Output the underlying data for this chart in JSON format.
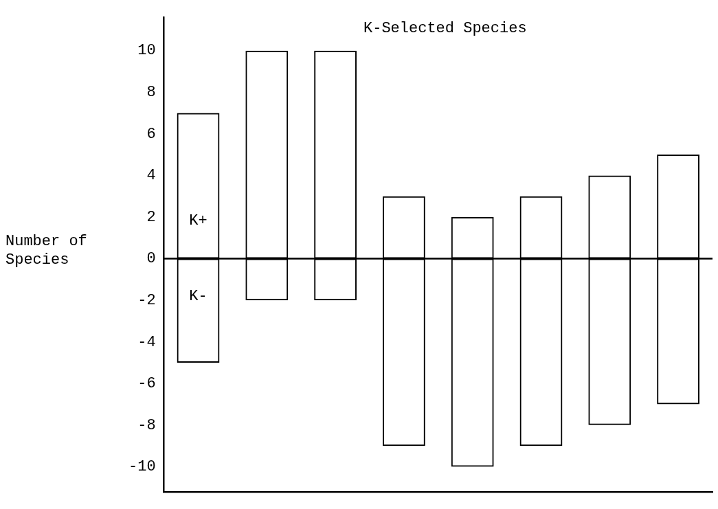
{
  "chart_data": {
    "type": "bar",
    "title": "K-Selected Species",
    "ylabel": "Number of Species",
    "categories": [
      null,
      null,
      null,
      null,
      null,
      null,
      null,
      null
    ],
    "stacked": true,
    "series": [
      {
        "name": "K+",
        "color": "#000000",
        "values": [
          7,
          10,
          10,
          3,
          2,
          3,
          4,
          5
        ]
      },
      {
        "name": "K-",
        "color": "#000000",
        "values": [
          -5,
          -2,
          -2,
          -9,
          -10,
          -9,
          -8,
          -7
        ]
      }
    ],
    "ylim": [
      -11.2,
      11.6
    ],
    "yticks": [
      -10,
      -8,
      -6,
      -4,
      -2,
      0,
      2,
      4,
      6,
      8,
      10
    ],
    "ref_lines": [
      {
        "axis": "y",
        "value": 0
      }
    ],
    "tick_labels": "y",
    "grid": false,
    "legend": false
  }
}
